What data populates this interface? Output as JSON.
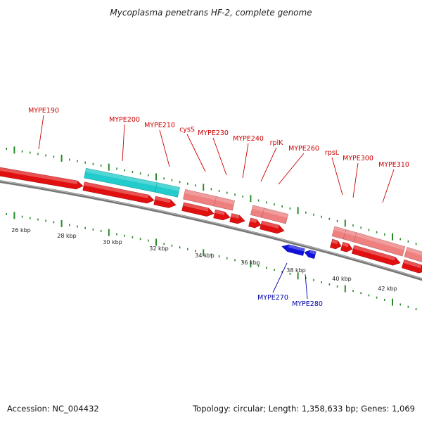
{
  "title": "Mycoplasma penetrans HF-2, complete genome",
  "footer": {
    "accession": "Accession: NC_004432",
    "summary": "Topology: circular; Length: 1,358,633 bp; Genes: 1,069"
  },
  "colors": {
    "forward_cds": "#e11010",
    "forward_region": "#ee8080",
    "rrna": "#22cccc",
    "reverse_cds": "#1111dd",
    "backbone": "#777777",
    "tick": "#2a8a2a",
    "forward_label": "#cc0000",
    "reverse_label": "#0000aa"
  },
  "kbp_ticks": [
    "26 kbp",
    "28 kbp",
    "30 kbp",
    "32 kbp",
    "34 kbp",
    "36 kbp",
    "38 kbp",
    "40 kbp",
    "42 kbp"
  ],
  "forward_labels": [
    "MYPE190",
    "MYPE200",
    "MYPE210",
    "cysS",
    "MYPE230",
    "MYPE240",
    "rplK",
    "MYPE260",
    "rpsL",
    "MYPE300",
    "MYPE310"
  ],
  "reverse_labels": [
    "MYPE270",
    "MYPE280"
  ]
}
